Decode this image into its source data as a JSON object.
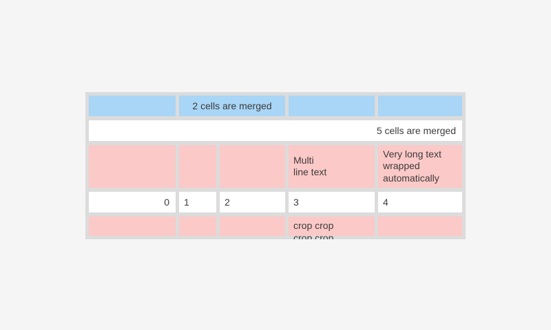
{
  "page": {
    "background_color": "#f5f5f5"
  },
  "table": {
    "colors": {
      "container": "#dcdcdc",
      "header_cell": "#a9d5f6",
      "accent_cell": "#fbc9c7",
      "plain_cell": "#ffffff",
      "text": "#3b3b3b"
    },
    "rows": [
      {
        "style": "blue",
        "note": "first data row; columns 2-3 merged",
        "cells": [
          "",
          "2 cells are merged",
          "",
          ""
        ]
      },
      {
        "style": "white",
        "note": "all five columns merged, right aligned",
        "cells": [
          "5 cells are merged"
        ]
      },
      {
        "style": "pink",
        "cells": [
          "",
          "",
          "",
          "Multi\nline text",
          "Very long text wrapped automatically"
        ]
      },
      {
        "style": "white",
        "cells": [
          "0",
          "1",
          "2",
          "3",
          "4"
        ]
      },
      {
        "style": "pink",
        "note": "row clipped by table bottom edge",
        "cells": [
          "",
          "",
          "",
          "crop crop\ncrop crop",
          ""
        ]
      }
    ]
  }
}
